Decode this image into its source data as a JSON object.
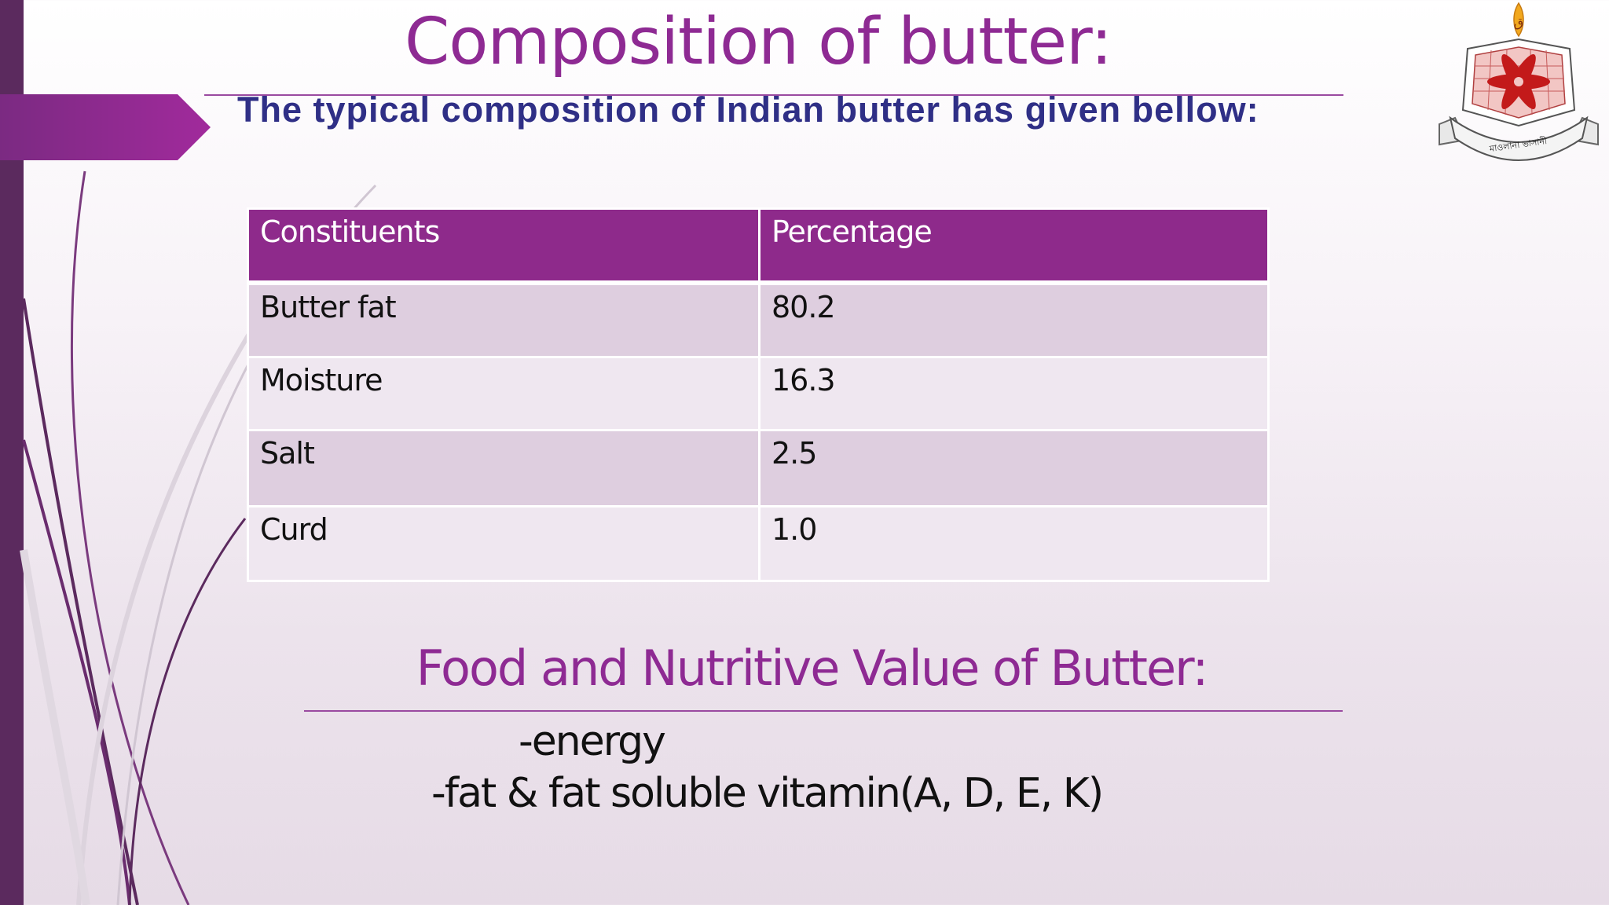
{
  "slide": {
    "title": "Composition of butter:",
    "subtitle": "The typical composition of Indian butter has given bellow:",
    "logo_text": "মাওলানা ভাসানী বিজ্ঞান ও প্রযুক্তি বিশ্ববিদ্যালয়"
  },
  "table": {
    "headers": [
      "Constituents",
      "Percentage"
    ],
    "rows": [
      [
        "Butter fat",
        "80.2"
      ],
      [
        "Moisture",
        "16.3"
      ],
      [
        "Salt",
        "2.5"
      ],
      [
        "Curd",
        "1.0"
      ]
    ]
  },
  "section": {
    "title": "Food and Nutritive Value of Butter:",
    "points": [
      "-energy",
      "-fat & fat soluble vitamin(A, D, E, K)"
    ]
  },
  "colors": {
    "accent_purple": "#8e2a93",
    "left_bar": "#5b2a5e",
    "header_fill": "#8e2a8b",
    "row_dark": "#decedf",
    "row_light": "#efe7f0",
    "subtitle_navy": "#2f2f86"
  }
}
